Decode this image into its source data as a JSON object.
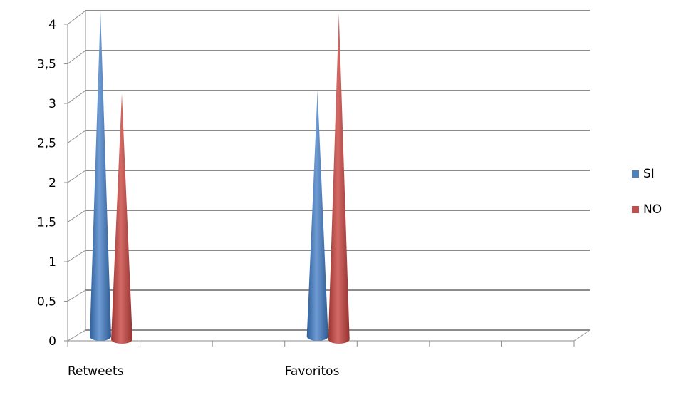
{
  "chart_data": {
    "type": "bar",
    "style": "3d-cone",
    "categories": [
      "Retweets",
      "",
      "",
      "Favoritos",
      "",
      "",
      ""
    ],
    "series": [
      {
        "name": "SI",
        "color": "#4F81BD",
        "values": [
          4,
          null,
          null,
          3,
          null,
          null,
          null
        ]
      },
      {
        "name": "NO",
        "color": "#C0504D",
        "values": [
          3,
          null,
          null,
          4,
          null,
          null,
          null
        ]
      }
    ],
    "yticks": [
      "0",
      "0,5",
      "1",
      "1,5",
      "2",
      "2,5",
      "3",
      "3,5",
      "4"
    ],
    "ylim": [
      0,
      4
    ],
    "grid": true,
    "legend_position": "right"
  }
}
